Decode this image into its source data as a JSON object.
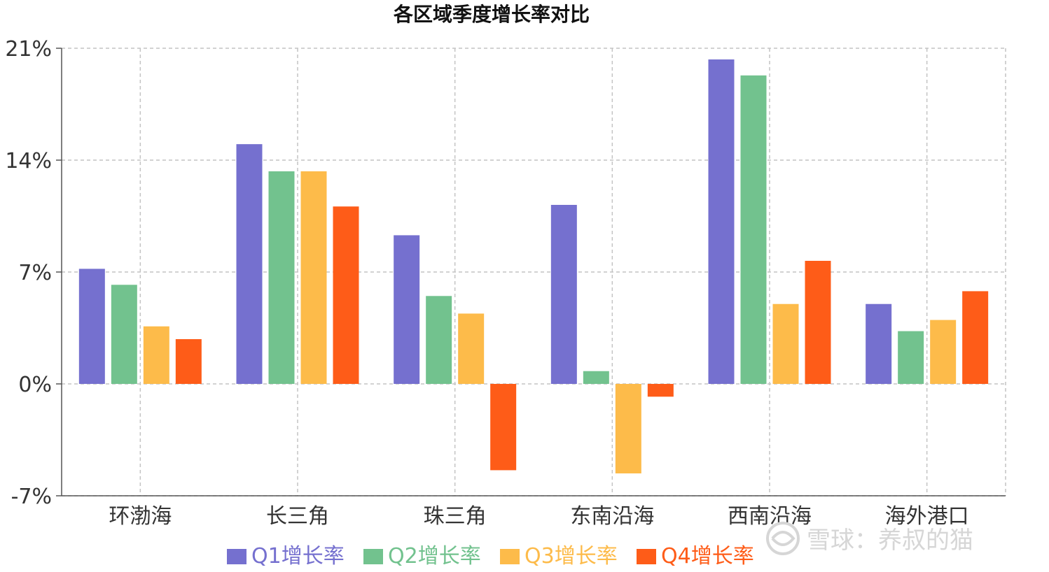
{
  "chart_data": {
    "type": "bar",
    "title": "各区域季度增长率对比",
    "xlabel": "",
    "ylabel": "",
    "categories": [
      "环渤海",
      "长三角",
      "珠三角",
      "东南沿海",
      "西南沿海",
      "海外港口"
    ],
    "ylim": [
      -7,
      21
    ],
    "yticks": [
      21,
      14,
      7,
      0,
      -7
    ],
    "ytick_labels": [
      "21%",
      "14%",
      "7%",
      "0%",
      "-7%"
    ],
    "grid": true,
    "legend_position": "bottom",
    "series": [
      {
        "name": "Q1增长率",
        "color": "#7570cf",
        "values": [
          7.2,
          15.0,
          9.3,
          11.2,
          20.3,
          5.0
        ]
      },
      {
        "name": "Q2增长率",
        "color": "#72c28e",
        "values": [
          6.2,
          13.3,
          5.5,
          0.8,
          19.3,
          3.3
        ]
      },
      {
        "name": "Q3增长率",
        "color": "#fdbb4a",
        "values": [
          3.6,
          13.3,
          4.4,
          -5.6,
          5.0,
          4.0
        ]
      },
      {
        "name": "Q4增长率",
        "color": "#fe5c18",
        "values": [
          2.8,
          11.1,
          -5.4,
          -0.8,
          7.7,
          5.8
        ]
      }
    ]
  },
  "watermark": {
    "text": "雪球：养叔的猫",
    "icon": "snowball-logo-icon"
  }
}
